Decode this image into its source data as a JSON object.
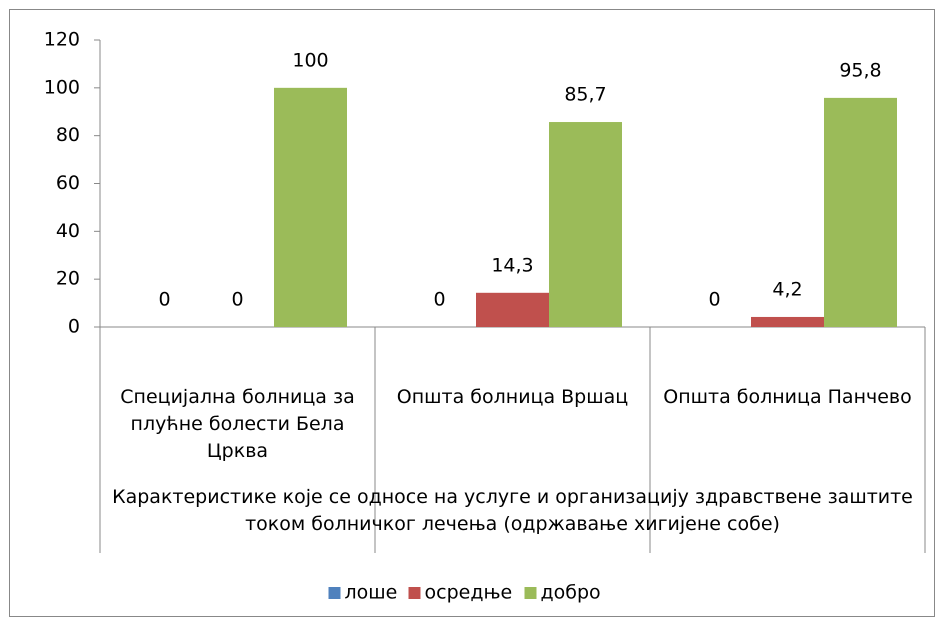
{
  "chart_data": {
    "type": "bar",
    "categories": [
      "Специјална болница за плућне болести Бела Црква",
      "Општа болница Вршац",
      "Општа болница Панчево"
    ],
    "x_label": "Карактеристике које се односе на услуге и организацију здравствене заштите током болничког лечења (одржавање хигијене собе)",
    "series": [
      {
        "name": "лоше",
        "color": "#4f81bd",
        "values": [
          0,
          0,
          0
        ],
        "value_labels": [
          "0",
          "0",
          "0"
        ]
      },
      {
        "name": "осредње",
        "color": "#c0504d",
        "values": [
          0,
          14.3,
          4.2
        ],
        "value_labels": [
          "0",
          "14,3",
          "4,2"
        ]
      },
      {
        "name": "добро",
        "color": "#9bbb59",
        "values": [
          100,
          85.7,
          95.8
        ],
        "value_labels": [
          "100",
          "85,7",
          "95,8"
        ]
      }
    ],
    "ylim": [
      0,
      120
    ],
    "yticks": [
      0,
      20,
      40,
      60,
      80,
      100,
      120
    ],
    "grid": false,
    "legend": "bottom"
  }
}
